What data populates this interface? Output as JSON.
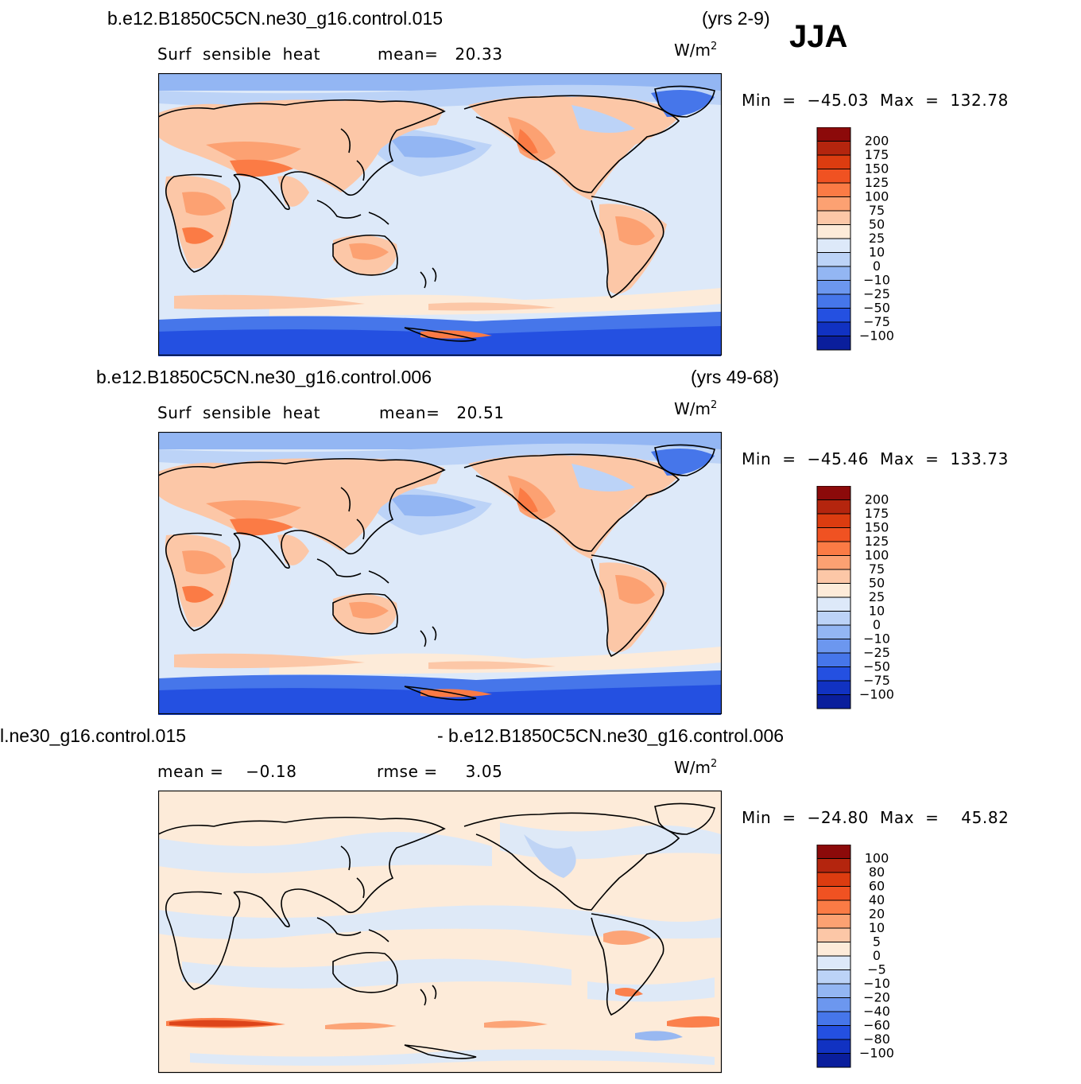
{
  "season": "JJA",
  "panels": [
    {
      "case_name": "b.e12.B1850C5CN.ne30_g16.control.015",
      "years": "(yrs 2-9)",
      "variable": "Surf  sensible  heat",
      "mean_text": "mean=   20.33",
      "units_base": "W/m",
      "units_exp": "2",
      "minmax_text": "Min  =  −45.03  Max  =  132.78",
      "colorbar": {
        "labels": [
          "200",
          "175",
          "150",
          "125",
          "100",
          "75",
          "50",
          "25",
          "10",
          "0",
          "−10",
          "−25",
          "−50",
          "−75",
          "−100"
        ],
        "colors": [
          "#8c0a0a",
          "#b4250e",
          "#dc3c10",
          "#f05222",
          "#fb7b45",
          "#fca172",
          "#fcc7a7",
          "#fdebd9",
          "#dde9f9",
          "#bcd3f7",
          "#93b6f3",
          "#6c97ef",
          "#4676ea",
          "#2450e1",
          "#1132c2",
          "#0a1e9c"
        ]
      }
    },
    {
      "case_name": "b.e12.B1850C5CN.ne30_g16.control.006",
      "years": "(yrs 49-68)",
      "variable": "Surf  sensible  heat",
      "mean_text": "mean=   20.51",
      "units_base": "W/m",
      "units_exp": "2",
      "minmax_text": "Min  =  −45.46  Max  =  133.73",
      "colorbar": {
        "labels": [
          "200",
          "175",
          "150",
          "125",
          "100",
          "75",
          "50",
          "25",
          "10",
          "0",
          "−10",
          "−25",
          "−50",
          "−75",
          "−100"
        ],
        "colors": [
          "#8c0a0a",
          "#b4250e",
          "#dc3c10",
          "#f05222",
          "#fb7b45",
          "#fca172",
          "#fcc7a7",
          "#fdebd9",
          "#dde9f9",
          "#bcd3f7",
          "#93b6f3",
          "#6c97ef",
          "#4676ea",
          "#2450e1",
          "#1132c2",
          "#0a1e9c"
        ]
      }
    },
    {
      "left_title": "l.ne30_g16.control.015",
      "right_title": "- b.e12.B1850C5CN.ne30_g16.control.006",
      "mean_text": "mean =    −0.18",
      "rmse_text": "rmse =     3.05",
      "units_base": "W/m",
      "units_exp": "2",
      "minmax_text": "Min  =  −24.80  Max  =    45.82",
      "colorbar": {
        "labels": [
          "100",
          "80",
          "60",
          "40",
          "20",
          "10",
          "5",
          "0",
          "−5",
          "−10",
          "−20",
          "−40",
          "−60",
          "−80",
          "−100"
        ],
        "colors": [
          "#8c0a0a",
          "#b4250e",
          "#dc3c10",
          "#f05222",
          "#fb7b45",
          "#fca172",
          "#fcc7a7",
          "#fdebd9",
          "#dde9f9",
          "#bcd3f7",
          "#93b6f3",
          "#6c97ef",
          "#4676ea",
          "#2450e1",
          "#1132c2",
          "#0a1e9c"
        ]
      }
    }
  ]
}
